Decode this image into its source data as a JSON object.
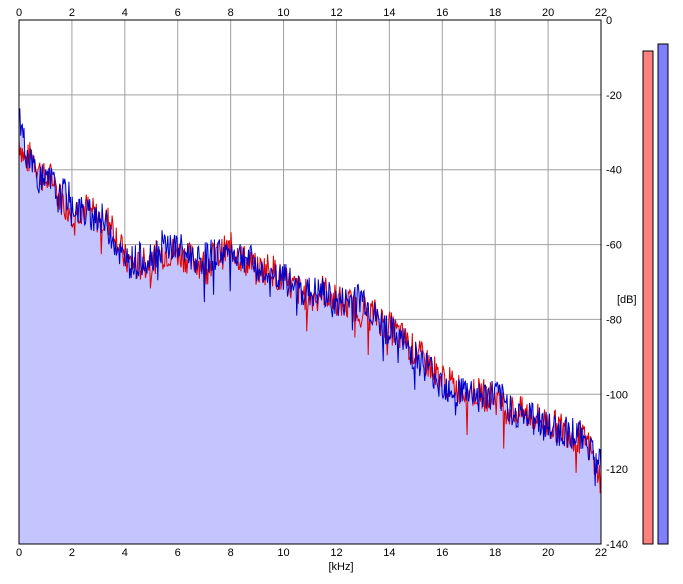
{
  "chart_data": {
    "type": "area",
    "title": "",
    "xlabel": "[kHz]",
    "ylabel": "[dB]",
    "xlim": [
      0,
      22
    ],
    "ylim": [
      -140,
      0
    ],
    "x_ticks": [
      0,
      2,
      4,
      6,
      8,
      10,
      12,
      14,
      16,
      18,
      20,
      22
    ],
    "x_tick_labels": [
      "0",
      "2",
      "4",
      "6",
      "8",
      "10",
      "12",
      "14",
      "16",
      "18",
      "20",
      "22"
    ],
    "y_ticks": [
      0,
      -20,
      -40,
      -60,
      -80,
      -100,
      -120,
      -140
    ],
    "y_tick_labels": [
      "0",
      "-20",
      "-40",
      "-60",
      "-80",
      "-100",
      "-120",
      "-140"
    ],
    "grid": true,
    "fill_color": "#c4c4ff",
    "series": [
      {
        "color": "#e00000",
        "x": [
          0.0,
          0.25,
          0.5,
          0.75,
          1.0,
          1.25,
          1.5,
          1.75,
          2.0,
          2.5,
          3.0,
          3.5,
          4.0,
          4.5,
          5.0,
          5.5,
          6.0,
          6.5,
          7.0,
          7.5,
          8.0,
          8.5,
          9.0,
          9.5,
          10.0,
          10.5,
          11.0,
          11.5,
          12.0,
          12.5,
          13.0,
          13.5,
          14.0,
          14.5,
          15.0,
          15.5,
          16.0,
          16.5,
          17.0,
          17.5,
          18.0,
          18.5,
          19.0,
          19.5,
          20.0,
          20.5,
          21.0,
          21.5,
          22.0
        ],
        "y": [
          -32,
          -38,
          -36,
          -40,
          -43,
          -42,
          -47,
          -49,
          -51,
          -50,
          -53,
          -54,
          -64,
          -66,
          -64,
          -62,
          -62,
          -64,
          -65,
          -63,
          -61,
          -64,
          -67,
          -66,
          -70,
          -72,
          -74,
          -72,
          -75,
          -76,
          -77,
          -79,
          -82,
          -85,
          -89,
          -92,
          -96,
          -98,
          -99,
          -100,
          -101,
          -104,
          -105,
          -106,
          -108,
          -109,
          -111,
          -113,
          -123
        ]
      },
      {
        "color": "#0000c8",
        "x": [
          0.0,
          0.25,
          0.5,
          0.75,
          1.0,
          1.25,
          1.5,
          1.75,
          2.0,
          2.5,
          3.0,
          3.5,
          4.0,
          4.5,
          5.0,
          5.5,
          6.0,
          6.5,
          7.0,
          7.5,
          8.0,
          8.5,
          9.0,
          9.5,
          10.0,
          10.5,
          11.0,
          11.5,
          12.0,
          12.5,
          13.0,
          13.5,
          14.0,
          14.5,
          15.0,
          15.5,
          16.0,
          16.5,
          17.0,
          17.5,
          18.0,
          18.5,
          19.0,
          19.5,
          20.0,
          20.5,
          21.0,
          21.5,
          22.0
        ],
        "y": [
          -25,
          -35,
          -38,
          -42,
          -44,
          -43,
          -48,
          -46,
          -49,
          -52,
          -52,
          -57,
          -65,
          -64,
          -63,
          -60,
          -61,
          -63,
          -64,
          -62,
          -62,
          -63,
          -66,
          -70,
          -69,
          -72,
          -73,
          -73,
          -76,
          -75,
          -74,
          -80,
          -83,
          -86,
          -90,
          -93,
          -97,
          -99,
          -99,
          -101,
          -100,
          -103,
          -106,
          -106,
          -109,
          -110,
          -110,
          -113,
          -118
        ]
      }
    ],
    "level_meters": [
      {
        "color": "#ff8080",
        "level": -141.5
      },
      {
        "color": "#8080ff",
        "level": -140.5
      }
    ]
  }
}
